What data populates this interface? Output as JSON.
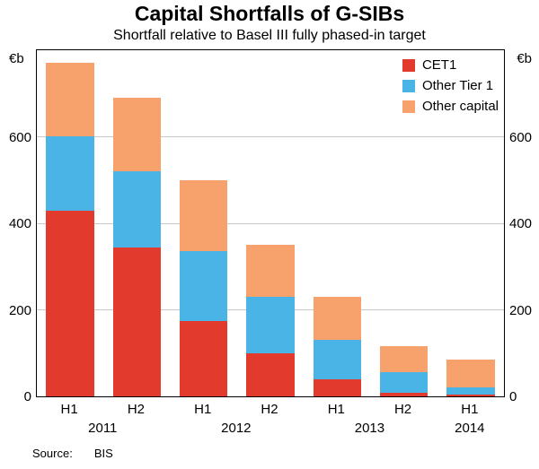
{
  "source": {
    "label": "Source:",
    "value": "BIS"
  },
  "chart_data": {
    "type": "bar",
    "stacked": true,
    "title": "Capital Shortfalls of G-SIBs",
    "subtitle": "Shortfall relative to Basel III fully phased-in target",
    "ylabel": "€b",
    "ylim": [
      0,
      800
    ],
    "yticks": [
      0,
      200,
      400,
      600
    ],
    "grid": true,
    "legend_position": "top-right",
    "categories": [
      "H1",
      "H2",
      "H1",
      "H2",
      "H1",
      "H2",
      "H1"
    ],
    "year_groups": [
      {
        "label": "2011",
        "slots": [
          0,
          1
        ]
      },
      {
        "label": "2012",
        "slots": [
          2,
          3
        ]
      },
      {
        "label": "2013",
        "slots": [
          4,
          5
        ]
      },
      {
        "label": "2014",
        "slots": [
          6
        ]
      }
    ],
    "series": [
      {
        "name": "CET1",
        "color": "#e23b2e",
        "values": [
          430,
          345,
          175,
          100,
          40,
          8,
          4
        ]
      },
      {
        "name": "Other Tier 1",
        "color": "#4ab4e6",
        "values": [
          170,
          175,
          160,
          130,
          90,
          47,
          16
        ]
      },
      {
        "name": "Other capital",
        "color": "#f7a26d",
        "values": [
          170,
          170,
          165,
          120,
          100,
          62,
          64
        ]
      }
    ],
    "frame_color": "#000000",
    "gridline_color": "#c8c8c8"
  }
}
